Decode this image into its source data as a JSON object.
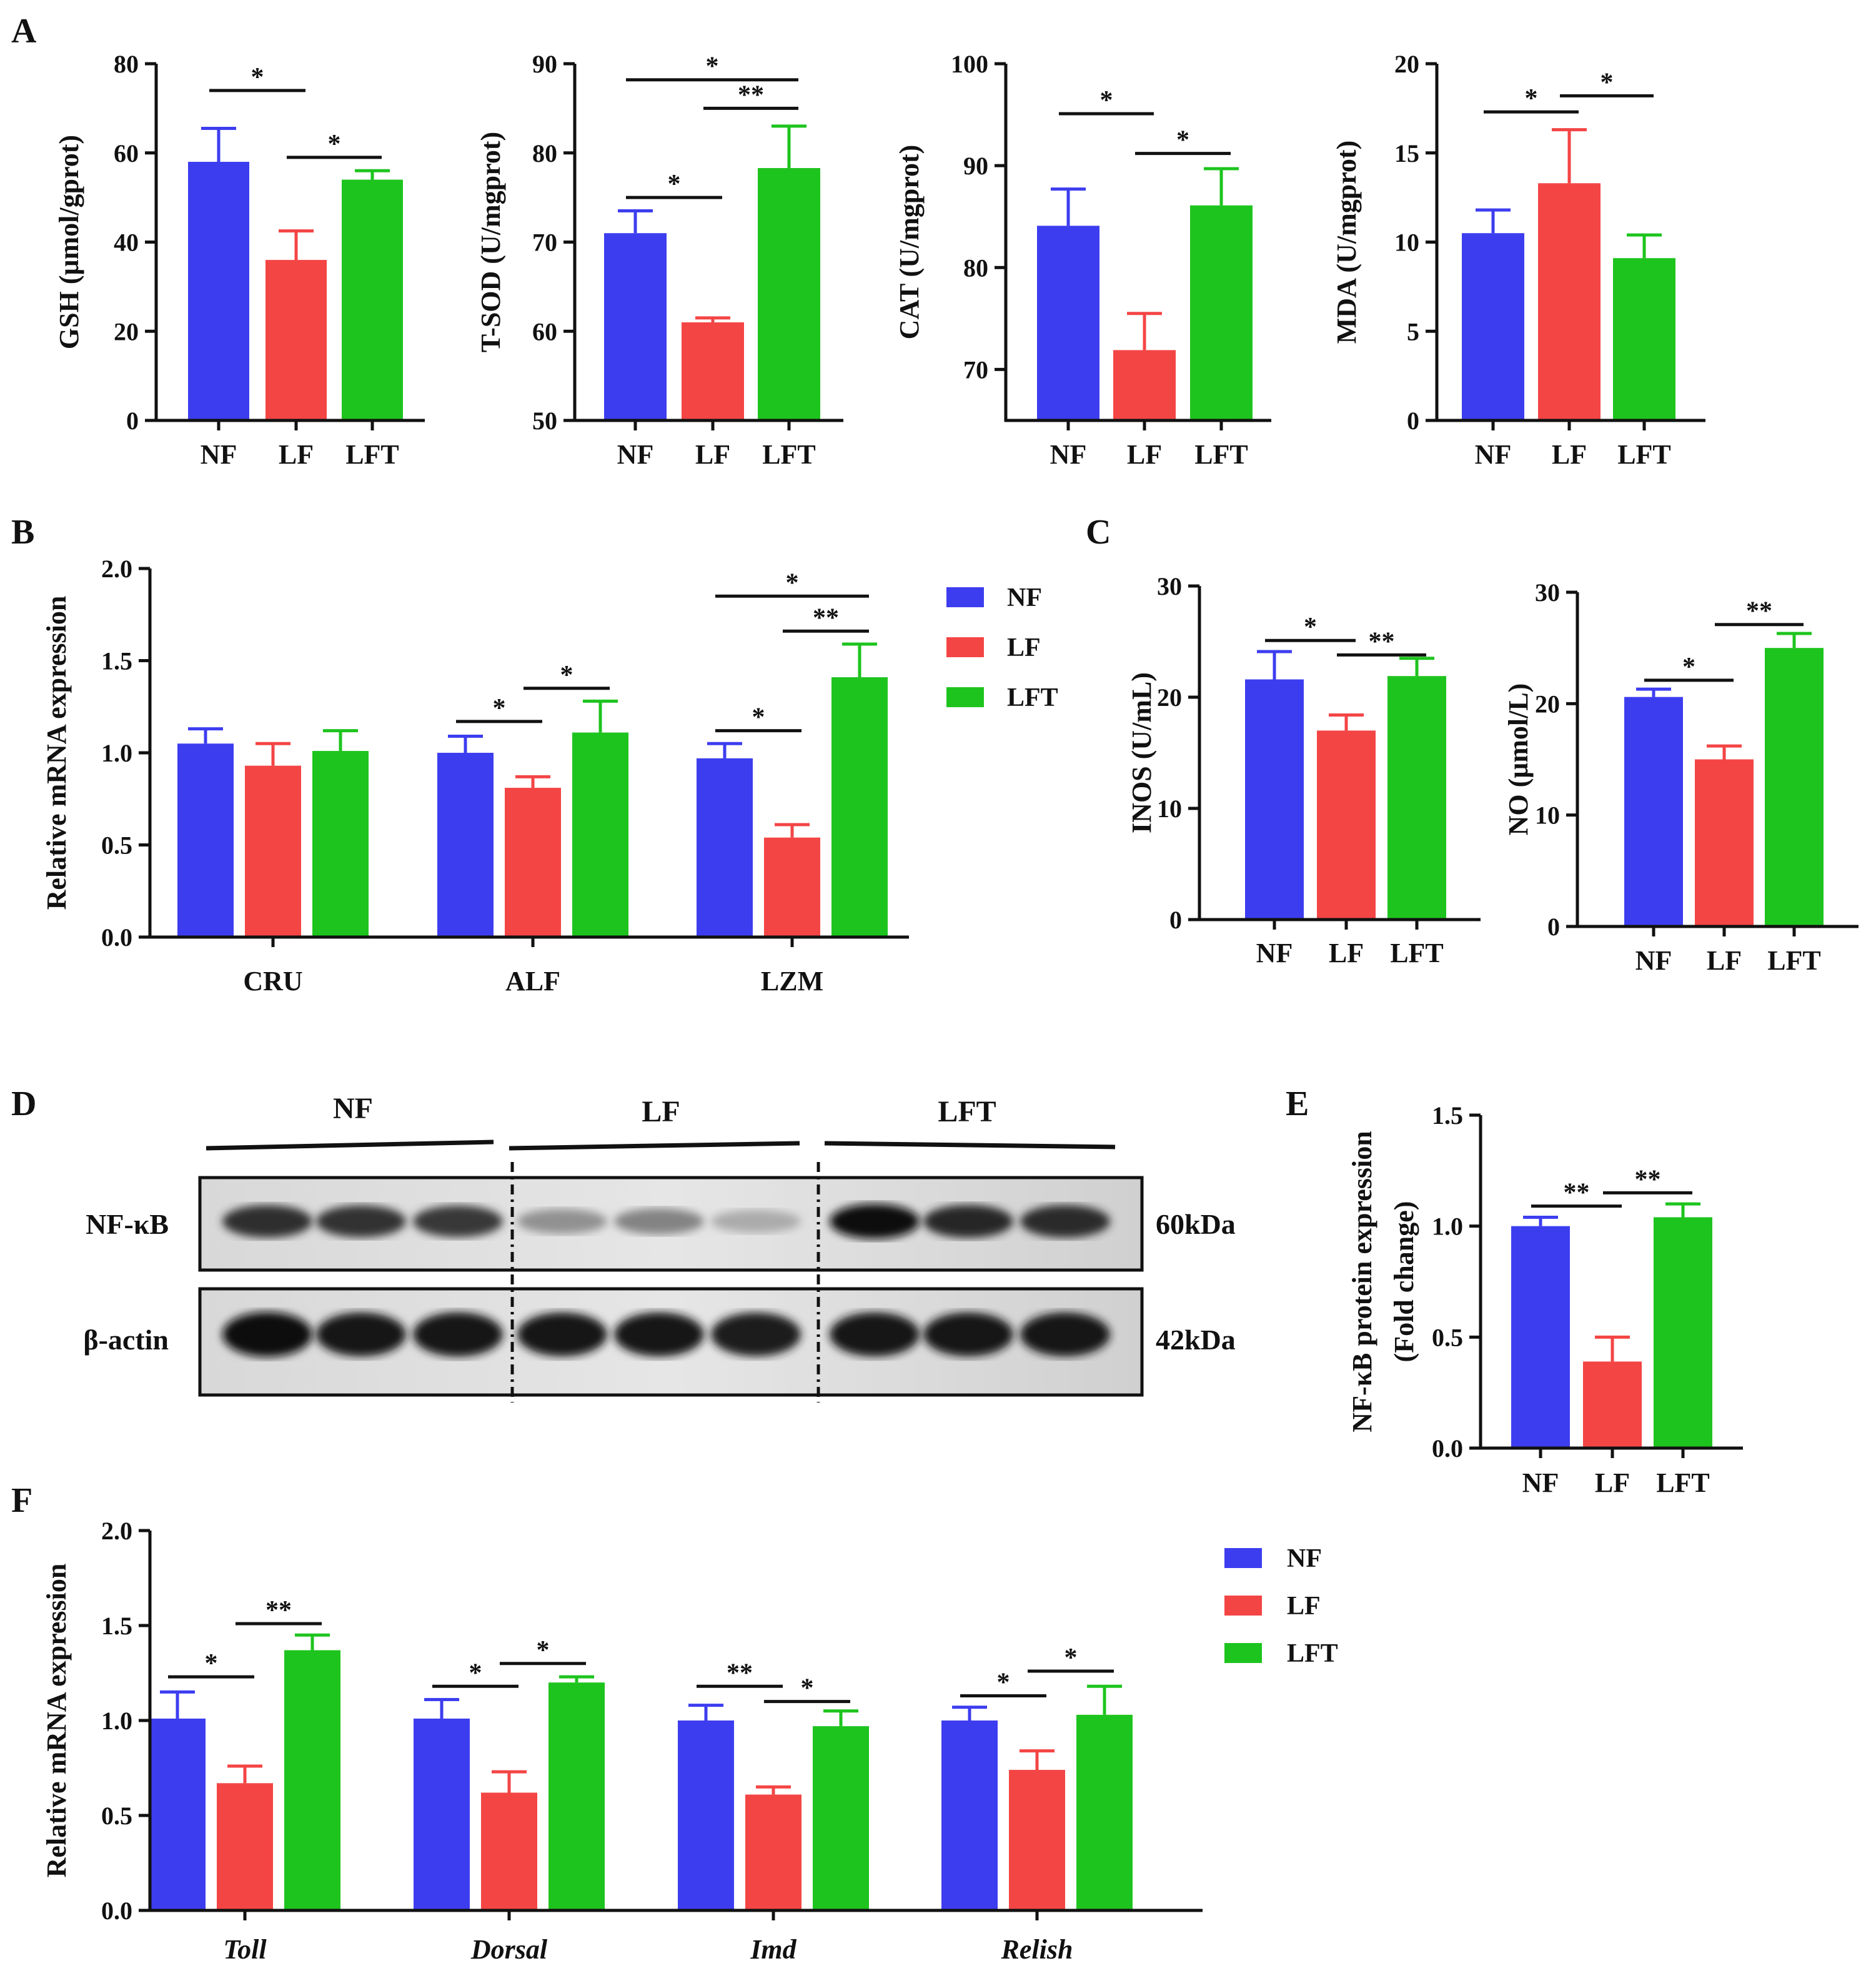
{
  "colors": {
    "NF": "#3d3df0",
    "LF": "#f44545",
    "LFT": "#1ec41e",
    "axis": "#111111"
  },
  "panel_labels": [
    "A",
    "B",
    "C",
    "D",
    "E",
    "F"
  ],
  "legend": [
    "NF",
    "LF",
    "LFT"
  ],
  "chart_data": [
    {
      "id": "A1",
      "panel": "A",
      "type": "bar",
      "ylabel": "GSH (μmol/gprot)",
      "categories": [
        "NF",
        "LF",
        "LFT"
      ],
      "values": [
        58,
        36,
        54
      ],
      "errors": [
        7.5,
        6.5,
        2.0
      ],
      "ylim": [
        0,
        80
      ],
      "yticks": [
        "0",
        "20",
        "40",
        "60",
        "80"
      ],
      "significance": [
        {
          "from": 0,
          "to": 1,
          "label": "*",
          "y": 74
        },
        {
          "from": 1,
          "to": 2,
          "label": "*",
          "y": 59
        }
      ]
    },
    {
      "id": "A2",
      "panel": "A",
      "type": "bar",
      "ylabel": "T-SOD (U/mgprot)",
      "categories": [
        "NF",
        "LF",
        "LFT"
      ],
      "values": [
        71,
        61,
        78.3
      ],
      "errors": [
        2.5,
        0.5,
        4.7
      ],
      "ylim": [
        50,
        90
      ],
      "yticks": [
        "50",
        "60",
        "70",
        "80",
        "90"
      ],
      "significance": [
        {
          "from": 0,
          "to": 1,
          "label": "*",
          "y": 75
        },
        {
          "from": 1,
          "to": 2,
          "label": "**",
          "y": 85
        },
        {
          "from": 0,
          "to": 2,
          "label": "*",
          "y": 88.2
        }
      ]
    },
    {
      "id": "A3",
      "panel": "A",
      "type": "bar",
      "ylabel": "CAT (U/mgprot)",
      "categories": [
        "NF",
        "LF",
        "LFT"
      ],
      "values": [
        84.1,
        71.9,
        86.1
      ],
      "errors": [
        3.6,
        3.6,
        3.6
      ],
      "ylim": [
        65,
        100
      ],
      "yticks": [
        "70",
        "80",
        "90",
        "100"
      ],
      "significance": [
        {
          "from": 0,
          "to": 1,
          "label": "*",
          "y": 95.1
        },
        {
          "from": 1,
          "to": 2,
          "label": "*",
          "y": 91.2
        }
      ]
    },
    {
      "id": "A4",
      "panel": "A",
      "type": "bar",
      "ylabel": "MDA (U/mgprot)",
      "categories": [
        "NF",
        "LF",
        "LFT"
      ],
      "values": [
        10.5,
        13.3,
        9.1
      ],
      "errors": [
        1.3,
        3.0,
        1.3
      ],
      "ylim": [
        0,
        20
      ],
      "yticks": [
        "0",
        "5",
        "10",
        "15",
        "20"
      ],
      "significance": [
        {
          "from": 0,
          "to": 1,
          "label": "*",
          "y": 17.3
        },
        {
          "from": 1,
          "to": 2,
          "label": "*",
          "y": 18.2
        }
      ]
    },
    {
      "id": "B",
      "panel": "B",
      "type": "bar",
      "ylabel": "Relative mRNA expression",
      "categories": [
        "CRU",
        "ALF",
        "LZM"
      ],
      "series": [
        {
          "name": "NF",
          "values": [
            1.05,
            1.0,
            0.97
          ],
          "errors": [
            0.08,
            0.09,
            0.08
          ]
        },
        {
          "name": "LF",
          "values": [
            0.93,
            0.81,
            0.54
          ],
          "errors": [
            0.12,
            0.06,
            0.07
          ]
        },
        {
          "name": "LFT",
          "values": [
            1.01,
            1.11,
            1.41
          ],
          "errors": [
            0.11,
            0.17,
            0.18
          ]
        }
      ],
      "ylim": [
        0,
        2.0
      ],
      "yticks": [
        "0.0",
        "0.5",
        "1.0",
        "1.5",
        "2.0"
      ],
      "significance": [
        {
          "group": 1,
          "from": 0,
          "to": 1,
          "label": "*",
          "y": 1.17
        },
        {
          "group": 1,
          "from": 1,
          "to": 2,
          "label": "*",
          "y": 1.35
        },
        {
          "group": 2,
          "from": 0,
          "to": 1,
          "label": "*",
          "y": 1.12
        },
        {
          "group": 2,
          "from": 1,
          "to": 2,
          "label": "**",
          "y": 1.66
        },
        {
          "group": 2,
          "from": 0,
          "to": 2,
          "label": "*",
          "y": 1.85
        }
      ]
    },
    {
      "id": "C1",
      "panel": "C",
      "type": "bar",
      "ylabel": "INOS (U/mL)",
      "categories": [
        "NF",
        "LF",
        "LFT"
      ],
      "values": [
        21.6,
        17.0,
        21.9
      ],
      "errors": [
        2.5,
        1.4,
        1.6
      ],
      "ylim": [
        0,
        30
      ],
      "yticks": [
        "0",
        "10",
        "20",
        "30"
      ],
      "significance": [
        {
          "from": 0,
          "to": 1,
          "label": "*",
          "y": 25.1
        },
        {
          "from": 1,
          "to": 2,
          "label": "**",
          "y": 23.8
        }
      ]
    },
    {
      "id": "C2",
      "panel": "C",
      "type": "bar",
      "ylabel": "NO (μmol/L)",
      "categories": [
        "NF",
        "LF",
        "LFT"
      ],
      "values": [
        20.6,
        15.0,
        25.0
      ],
      "errors": [
        0.7,
        1.2,
        1.3
      ],
      "ylim": [
        0,
        30
      ],
      "yticks": [
        "0",
        "10",
        "20",
        "30"
      ],
      "significance": [
        {
          "from": 0,
          "to": 1,
          "label": "*",
          "y": 22.1
        },
        {
          "from": 1,
          "to": 2,
          "label": "**",
          "y": 27.1
        }
      ]
    },
    {
      "id": "E",
      "panel": "E",
      "type": "bar",
      "ylabel": "NF-κB protein expression",
      "ylabel2": "(Fold change)",
      "categories": [
        "NF",
        "LF",
        "LFT"
      ],
      "values": [
        1.0,
        0.39,
        1.04
      ],
      "errors": [
        0.04,
        0.11,
        0.06
      ],
      "ylim": [
        0,
        1.5
      ],
      "yticks": [
        "0.0",
        "0.5",
        "1.0",
        "1.5"
      ],
      "significance": [
        {
          "from": 0,
          "to": 1,
          "label": "**",
          "y": 1.09
        },
        {
          "from": 1,
          "to": 2,
          "label": "**",
          "y": 1.15
        }
      ]
    },
    {
      "id": "F",
      "panel": "F",
      "type": "bar",
      "ylabel": "Relative mRNA expression",
      "categories": [
        "Toll",
        "Dorsal",
        "Imd",
        "Relish"
      ],
      "series": [
        {
          "name": "NF",
          "values": [
            1.01,
            1.01,
            1.0,
            1.0
          ],
          "errors": [
            0.14,
            0.1,
            0.08,
            0.07
          ]
        },
        {
          "name": "LF",
          "values": [
            0.67,
            0.62,
            0.61,
            0.74
          ],
          "errors": [
            0.09,
            0.11,
            0.04,
            0.1
          ]
        },
        {
          "name": "LFT",
          "values": [
            1.37,
            1.2,
            0.97,
            1.03
          ],
          "errors": [
            0.08,
            0.03,
            0.08,
            0.15
          ]
        }
      ],
      "ylim": [
        0,
        2.0
      ],
      "yticks": [
        "0.0",
        "0.5",
        "1.0",
        "1.5",
        "2.0"
      ],
      "significance": [
        {
          "group": 0,
          "from": 0,
          "to": 1,
          "label": "*",
          "y": 1.23
        },
        {
          "group": 0,
          "from": 1,
          "to": 2,
          "label": "**",
          "y": 1.51
        },
        {
          "group": 1,
          "from": 0,
          "to": 1,
          "label": "*",
          "y": 1.18
        },
        {
          "group": 1,
          "from": 1,
          "to": 2,
          "label": "*",
          "y": 1.3
        },
        {
          "group": 2,
          "from": 0,
          "to": 1,
          "label": "**",
          "y": 1.18
        },
        {
          "group": 2,
          "from": 1,
          "to": 2,
          "label": "*",
          "y": 1.1
        },
        {
          "group": 3,
          "from": 0,
          "to": 1,
          "label": "*",
          "y": 1.13
        },
        {
          "group": 3,
          "from": 1,
          "to": 2,
          "label": "*",
          "y": 1.26
        }
      ]
    }
  ],
  "western_blot": {
    "groups": [
      "NF",
      "LF",
      "LFT"
    ],
    "rows": [
      {
        "label": "NF-κB",
        "size": "60kDa",
        "intensities": [
          0.85,
          0.82,
          0.8,
          0.35,
          0.42,
          0.22,
          1.0,
          0.88,
          0.86
        ]
      },
      {
        "label": "β-actin",
        "size": "42kDa",
        "intensities": [
          1.0,
          0.95,
          0.97,
          0.95,
          0.96,
          0.94,
          0.96,
          0.95,
          0.95
        ]
      }
    ]
  }
}
